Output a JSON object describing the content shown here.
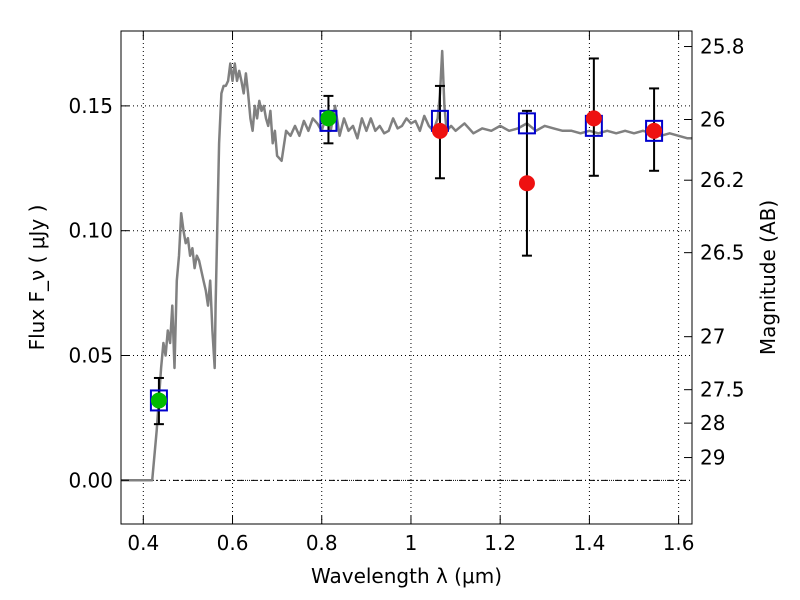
{
  "chart_data": {
    "type": "scatter",
    "title": "",
    "xlabel": "Wavelength  λ (μm)",
    "ylabel": "Flux  F_ν  ( μJy )",
    "y2label": "Magnitude (AB)",
    "xlim": [
      0.35,
      1.63
    ],
    "ylim": [
      -0.0175,
      0.18
    ],
    "grid": true,
    "x_ticks": [
      0.4,
      0.6,
      0.8,
      1.0,
      1.2,
      1.4,
      1.6
    ],
    "x_tick_labels": [
      "0.4",
      "0.6",
      "0.8",
      "1",
      "1.2",
      "1.4",
      "1.6"
    ],
    "y_ticks": [
      0.0,
      0.05,
      0.1,
      0.15
    ],
    "y_tick_labels": [
      "0.00",
      "0.05",
      "0.10",
      "0.15"
    ],
    "right_ticks": [
      {
        "label": "25.8",
        "mag": 25.8
      },
      {
        "label": "26",
        "mag": 26.0
      },
      {
        "label": "26.2",
        "mag": 26.2
      },
      {
        "label": "26.5",
        "mag": 26.5
      },
      {
        "label": "27",
        "mag": 27.0
      },
      {
        "label": "27.5",
        "mag": 27.5
      },
      {
        "label": "28",
        "mag": 28.0
      },
      {
        "label": "29",
        "mag": 29.0
      }
    ],
    "model_spectrum": {
      "color": "#808080",
      "x": [
        0.35,
        0.42,
        0.43,
        0.44,
        0.445,
        0.45,
        0.455,
        0.46,
        0.465,
        0.47,
        0.475,
        0.48,
        0.485,
        0.49,
        0.495,
        0.5,
        0.505,
        0.51,
        0.515,
        0.52,
        0.525,
        0.53,
        0.535,
        0.54,
        0.545,
        0.55,
        0.555,
        0.56,
        0.562,
        0.57,
        0.575,
        0.58,
        0.585,
        0.59,
        0.595,
        0.6,
        0.605,
        0.61,
        0.615,
        0.62,
        0.625,
        0.63,
        0.635,
        0.64,
        0.645,
        0.65,
        0.655,
        0.66,
        0.665,
        0.67,
        0.675,
        0.68,
        0.685,
        0.69,
        0.695,
        0.7,
        0.71,
        0.72,
        0.73,
        0.74,
        0.75,
        0.76,
        0.77,
        0.78,
        0.79,
        0.8,
        0.81,
        0.82,
        0.83,
        0.84,
        0.85,
        0.86,
        0.87,
        0.88,
        0.89,
        0.9,
        0.91,
        0.92,
        0.93,
        0.94,
        0.95,
        0.96,
        0.97,
        0.98,
        0.99,
        1.0,
        1.01,
        1.02,
        1.03,
        1.04,
        1.05,
        1.06,
        1.065,
        1.07,
        1.075,
        1.08,
        1.09,
        1.1,
        1.12,
        1.14,
        1.16,
        1.18,
        1.2,
        1.22,
        1.24,
        1.26,
        1.28,
        1.3,
        1.32,
        1.34,
        1.36,
        1.38,
        1.4,
        1.42,
        1.44,
        1.46,
        1.48,
        1.5,
        1.52,
        1.54,
        1.56,
        1.58,
        1.6,
        1.62,
        1.63
      ],
      "y": [
        0.0,
        0.0,
        0.02,
        0.045,
        0.055,
        0.05,
        0.06,
        0.055,
        0.07,
        0.045,
        0.08,
        0.09,
        0.107,
        0.1,
        0.095,
        0.097,
        0.09,
        0.093,
        0.085,
        0.09,
        0.088,
        0.084,
        0.08,
        0.076,
        0.07,
        0.08,
        0.06,
        0.045,
        0.07,
        0.135,
        0.155,
        0.158,
        0.158,
        0.16,
        0.167,
        0.16,
        0.167,
        0.16,
        0.164,
        0.16,
        0.155,
        0.163,
        0.155,
        0.145,
        0.14,
        0.15,
        0.145,
        0.152,
        0.148,
        0.15,
        0.145,
        0.142,
        0.148,
        0.135,
        0.14,
        0.13,
        0.128,
        0.14,
        0.138,
        0.142,
        0.138,
        0.144,
        0.14,
        0.145,
        0.143,
        0.14,
        0.146,
        0.14,
        0.15,
        0.138,
        0.145,
        0.14,
        0.142,
        0.137,
        0.145,
        0.14,
        0.145,
        0.14,
        0.142,
        0.139,
        0.14,
        0.145,
        0.141,
        0.142,
        0.145,
        0.143,
        0.144,
        0.14,
        0.146,
        0.142,
        0.14,
        0.145,
        0.155,
        0.172,
        0.15,
        0.14,
        0.142,
        0.14,
        0.143,
        0.139,
        0.141,
        0.14,
        0.142,
        0.14,
        0.141,
        0.143,
        0.14,
        0.142,
        0.141,
        0.14,
        0.14,
        0.139,
        0.14,
        0.139,
        0.14,
        0.139,
        0.14,
        0.139,
        0.14,
        0.139,
        0.138,
        0.139,
        0.138,
        0.137,
        0.137
      ]
    },
    "series": [
      {
        "name": "",
        "marker": "open-square",
        "color": "#0000cc",
        "x": [
          0.435,
          0.815,
          1.065,
          1.26,
          1.41,
          1.545
        ],
        "y": [
          0.032,
          0.144,
          0.144,
          0.143,
          0.142,
          0.14
        ]
      },
      {
        "name": "",
        "marker": "circle",
        "color": "#00bb00",
        "x": [
          0.435,
          0.815
        ],
        "y": [
          0.032,
          0.145
        ],
        "err_low": [
          0.0225,
          0.135
        ],
        "err_high": [
          0.041,
          0.154
        ]
      },
      {
        "name": "",
        "marker": "circle",
        "color": "#ee1111",
        "x": [
          1.065,
          1.26,
          1.41,
          1.545
        ],
        "y": [
          0.14,
          0.119,
          0.145,
          0.14
        ],
        "err_low": [
          0.121,
          0.09,
          0.122,
          0.124
        ],
        "err_high": [
          0.158,
          0.148,
          0.169,
          0.157
        ]
      }
    ],
    "zero_line": true
  }
}
